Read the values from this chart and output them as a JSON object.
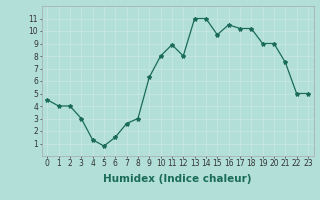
{
  "x": [
    0,
    1,
    2,
    3,
    4,
    5,
    6,
    7,
    8,
    9,
    10,
    11,
    12,
    13,
    14,
    15,
    16,
    17,
    18,
    19,
    20,
    21,
    22,
    23
  ],
  "y": [
    4.5,
    4.0,
    4.0,
    3.0,
    1.3,
    0.8,
    1.5,
    2.6,
    3.0,
    6.3,
    8.0,
    8.9,
    8.0,
    11.0,
    11.0,
    9.7,
    10.5,
    10.2,
    10.2,
    9.0,
    9.0,
    7.5,
    5.0,
    5.0
  ],
  "xlabel": "Humidex (Indice chaleur)",
  "xlim": [
    -0.5,
    23.5
  ],
  "ylim": [
    0,
    12
  ],
  "xticks": [
    0,
    1,
    2,
    3,
    4,
    5,
    6,
    7,
    8,
    9,
    10,
    11,
    12,
    13,
    14,
    15,
    16,
    17,
    18,
    19,
    20,
    21,
    22,
    23
  ],
  "yticks": [
    1,
    2,
    3,
    4,
    5,
    6,
    7,
    8,
    9,
    10,
    11
  ],
  "line_color": "#1a6b5a",
  "marker": "*",
  "bg_color": "#b2e0d8",
  "grid_color": "#d0ece8",
  "xlabel_fontsize": 7.5,
  "tick_fontsize": 5.5
}
